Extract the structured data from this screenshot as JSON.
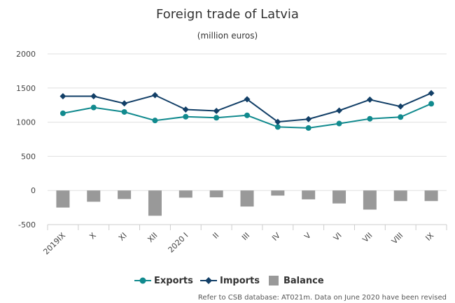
{
  "chart_data": {
    "type": "line",
    "title": "Foreign trade of Latvia",
    "subtitle": "(million euros)",
    "categories": [
      "2019IX",
      "X",
      "XI",
      "XII",
      "2020 I",
      "II",
      "III",
      "IV",
      "V",
      "VI",
      "VII",
      "VIII",
      "IX"
    ],
    "ylim": [
      -500,
      2000
    ],
    "yticks": [
      2000,
      1500,
      1000,
      500,
      0,
      -500
    ],
    "grid": true,
    "legend_position": "bottom-center",
    "series": [
      {
        "name": "Exports",
        "kind": "line",
        "marker": "circle",
        "color": "#118a8e",
        "values": [
          1130,
          1215,
          1150,
          1025,
          1080,
          1065,
          1100,
          930,
          915,
          980,
          1050,
          1075,
          1270
        ]
      },
      {
        "name": "Imports",
        "kind": "line",
        "marker": "diamond",
        "color": "#123f67",
        "values": [
          1380,
          1380,
          1275,
          1395,
          1185,
          1165,
          1335,
          1005,
          1045,
          1170,
          1330,
          1230,
          1425
        ]
      },
      {
        "name": "Balance",
        "kind": "bar",
        "color": "#999999",
        "values": [
          -250,
          -165,
          -125,
          -370,
          -105,
          -100,
          -235,
          -75,
          -130,
          -190,
          -280,
          -155,
          -155
        ]
      }
    ],
    "footnote": "Refer to CSB database: AT021m. Data on June 2020 have been revised"
  }
}
